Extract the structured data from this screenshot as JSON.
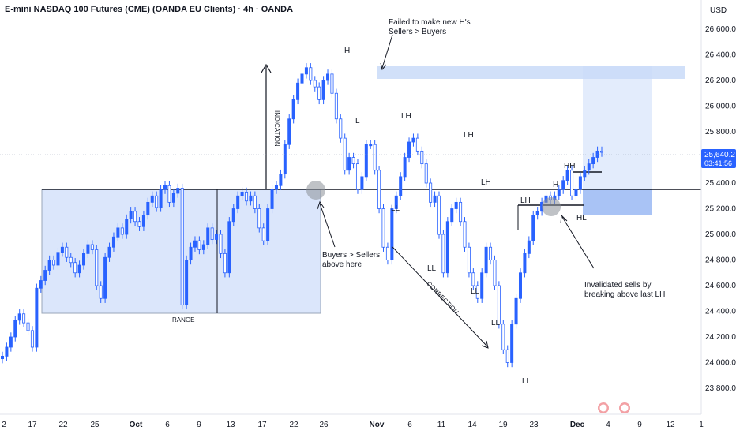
{
  "header": {
    "title": "E-mini NASDAQ 100 Futures (CME) (OANDA EU Clients) · 4h · OANDA"
  },
  "price_axis": {
    "currency": "USD",
    "current_price": "25,640.2",
    "countdown": "03:41:56"
  },
  "colors": {
    "candle": "#2962ff",
    "range_fill": "#dbe6fb",
    "zone_fill": "#c9daf8",
    "badge": "#2962ff"
  },
  "chart_data": {
    "type": "line",
    "ylim": [
      23700,
      26750
    ],
    "y_ticks": [
      23800,
      24000,
      24200,
      24400,
      24600,
      24800,
      25000,
      25200,
      25400,
      25600,
      25800,
      26000,
      26200,
      26400,
      26600
    ],
    "y_tick_labels": [
      "23,800.0",
      "24,000.0",
      "24,200.0",
      "24,400.0",
      "24,600.0",
      "24,800.0",
      "25,000.0",
      "25,200.0",
      "25,400.0",
      "25,600.0",
      "25,800.0",
      "26,000.0",
      "26,200.0",
      "26,400.0",
      "26,600.0"
    ],
    "x_tick_labels": [
      "2",
      "17",
      "22",
      "25",
      "Oct",
      "6",
      "9",
      "13",
      "17",
      "22",
      "26",
      "Nov",
      "6",
      "11",
      "14",
      "19",
      "23",
      "Dec",
      "4",
      "9",
      "12",
      "1"
    ],
    "series": [
      {
        "values": [
          24050,
          24120,
          24200,
          24330,
          24380,
          24310,
          24250,
          24120,
          24580,
          24640,
          24720,
          24800,
          24760,
          24860,
          24900,
          24820,
          24780,
          24700,
          24760,
          24850,
          24920,
          24880,
          24600,
          24500,
          24820,
          24900,
          24980,
          25050,
          25000,
          25120,
          25180,
          25100,
          25060,
          25150,
          25250,
          25300,
          25210,
          25350,
          25380,
          25250,
          25320,
          25360,
          24450,
          24800,
          24900,
          24950,
          24880,
          24920,
          25050,
          24960,
          25000,
          24850,
          24700,
          25100,
          25200,
          25300,
          25330,
          25260,
          25300,
          25200,
          25050,
          24950,
          25200,
          25350,
          25380,
          25470,
          25700,
          25900,
          26050,
          26180,
          26250,
          26300,
          26200,
          26150,
          26050,
          26200,
          26250,
          26100,
          25900,
          25750,
          25500,
          25600,
          25550,
          25350,
          25450,
          25700,
          25700,
          25500,
          25200,
          24900,
          24800,
          25200,
          25300,
          25450,
          25600,
          25720,
          25750,
          25650,
          25550,
          25400,
          25250,
          25300,
          25000,
          24700,
          25100,
          25200,
          25250,
          25100,
          24900,
          24700,
          24600,
          24500,
          24700,
          24900,
          24800,
          24600,
          24300,
          24100,
          24000,
          24300,
          24500,
          24700,
          24850,
          24950,
          25150,
          25180,
          25250,
          25300,
          25270,
          25300,
          25350,
          25420,
          25500,
          25300,
          25350,
          25450,
          25500,
          25550,
          25600,
          25650,
          25640
        ]
      }
    ],
    "annotations": {
      "h_top": "H",
      "failed_line1": "Failed to make new H's",
      "failed_line2": "Sellers > Buyers",
      "l_first": "L",
      "lh_1": "LH",
      "lh_2": "LH",
      "lh_3": "LH",
      "lh_4": "LH",
      "ll_1": "LL",
      "ll_2": "LL",
      "ll_3": "LL",
      "ll_4": "LL",
      "ll_5": "LL",
      "h_right": "H",
      "hh": "HH",
      "hl": "HL",
      "indication": "INDICATION",
      "range": "RANGE",
      "correction": "CORRECTION",
      "buyers_line1": "Buyers > Sellers",
      "buyers_line2": "above here",
      "invalidated_line1": "Invalidated sells by",
      "invalidated_line2": "breaking above last LH"
    }
  }
}
